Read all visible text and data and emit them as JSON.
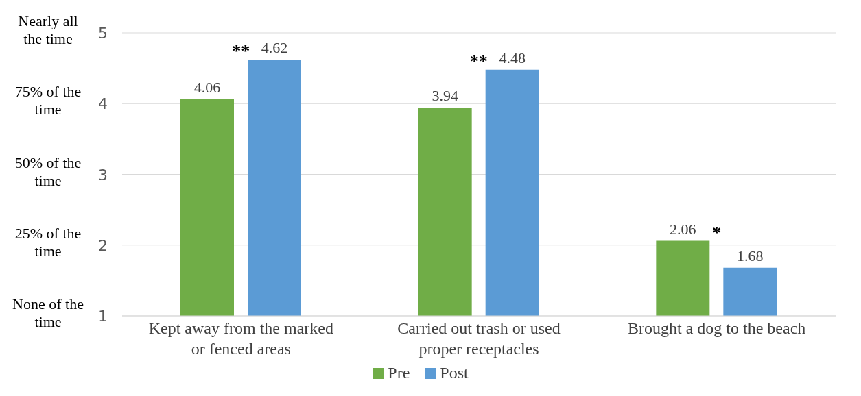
{
  "chart_data": {
    "type": "bar",
    "categories": [
      "Kept away from the marked or fenced areas",
      "Carried out trash or used proper receptacles",
      "Brought a dog to the beach"
    ],
    "series": [
      {
        "name": "Pre",
        "color": "#70ad47",
        "values": [
          4.06,
          3.94,
          2.06
        ]
      },
      {
        "name": "Post",
        "color": "#5b9bd5",
        "values": [
          4.62,
          4.48,
          1.68
        ]
      }
    ],
    "ylim": [
      1,
      5
    ],
    "yticks": [
      1,
      2,
      3,
      4,
      5
    ],
    "data_labels": true,
    "grid": "y",
    "legend": "bottom",
    "annotations": [
      "None of the time",
      "25% of the time",
      "50% of the time",
      "75% of the time",
      "Nearly all the time",
      "**",
      "**",
      "*"
    ]
  }
}
